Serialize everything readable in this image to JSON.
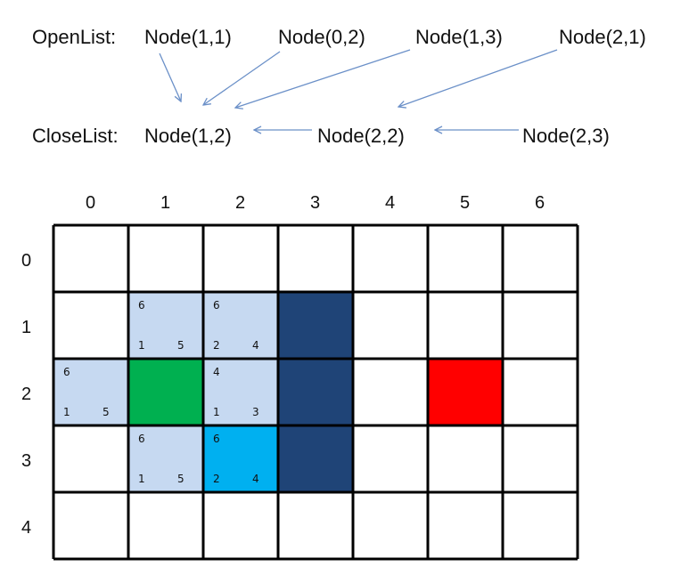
{
  "open_list": {
    "label": "OpenList:",
    "nodes": [
      "Node(1,1)",
      "Node(0,2)",
      "Node(1,3)",
      "Node(2,1)"
    ]
  },
  "close_list": {
    "label": "CloseList:",
    "nodes": [
      "Node(1,2)",
      "Node(2,2)",
      "Node(2,3)"
    ]
  },
  "grid": {
    "columns": [
      "0",
      "1",
      "2",
      "3",
      "4",
      "5",
      "6"
    ],
    "rows": [
      "0",
      "1",
      "2",
      "3",
      "4"
    ],
    "cells": [
      {
        "row": 1,
        "col": 1,
        "kind": "open",
        "f": "6",
        "g": "1",
        "h": "5"
      },
      {
        "row": 1,
        "col": 2,
        "kind": "open",
        "f": "6",
        "g": "2",
        "h": "4"
      },
      {
        "row": 1,
        "col": 3,
        "kind": "wall"
      },
      {
        "row": 2,
        "col": 0,
        "kind": "open",
        "f": "6",
        "g": "1",
        "h": "5"
      },
      {
        "row": 2,
        "col": 1,
        "kind": "start"
      },
      {
        "row": 2,
        "col": 2,
        "kind": "open",
        "f": "4",
        "g": "1",
        "h": "3"
      },
      {
        "row": 2,
        "col": 3,
        "kind": "wall"
      },
      {
        "row": 2,
        "col": 5,
        "kind": "goal"
      },
      {
        "row": 3,
        "col": 1,
        "kind": "open",
        "f": "6",
        "g": "1",
        "h": "5"
      },
      {
        "row": 3,
        "col": 2,
        "kind": "current",
        "f": "6",
        "g": "2",
        "h": "4"
      },
      {
        "row": 3,
        "col": 3,
        "kind": "wall"
      }
    ]
  },
  "colors": {
    "open": "#c6d9f1",
    "wall": "#1f4477",
    "start": "#00b050",
    "goal": "#ff0000",
    "current": "#00b0f0",
    "arrow": "#6b90c8",
    "highlight_text": "#ff0000",
    "grid_line": "#000000"
  }
}
